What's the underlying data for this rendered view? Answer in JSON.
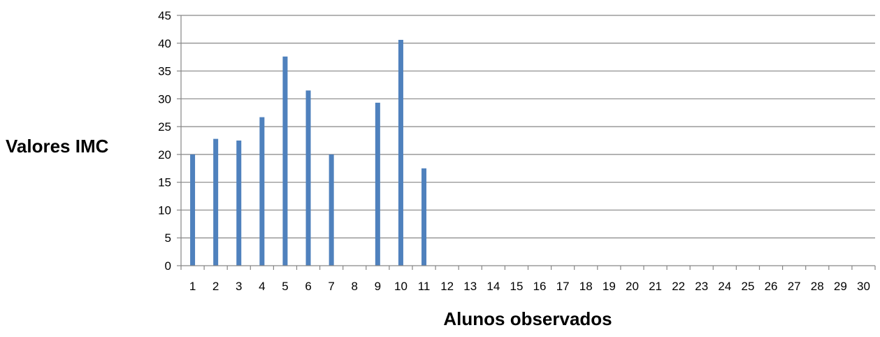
{
  "chart_data": {
    "type": "bar",
    "title": "",
    "xlabel": "Alunos observados",
    "ylabel": "Valores IMC",
    "categories": [
      "1",
      "2",
      "3",
      "4",
      "5",
      "6",
      "7",
      "8",
      "9",
      "10",
      "11",
      "12",
      "13",
      "14",
      "15",
      "16",
      "17",
      "18",
      "19",
      "20",
      "21",
      "22",
      "23",
      "24",
      "25",
      "26",
      "27",
      "28",
      "29",
      "30"
    ],
    "values": [
      20.0,
      22.8,
      22.5,
      26.7,
      37.6,
      31.5,
      20.0,
      null,
      29.3,
      40.6,
      17.5,
      null,
      null,
      null,
      null,
      null,
      null,
      null,
      null,
      null,
      null,
      null,
      null,
      null,
      null,
      null,
      null,
      null,
      null,
      null
    ],
    "ylim": [
      0,
      45
    ],
    "yticks": [
      0,
      5,
      10,
      15,
      20,
      25,
      30,
      35,
      40,
      45
    ],
    "grid": true,
    "legend": "none",
    "bar_color": "#4F81BD",
    "grid_color": "#868686"
  }
}
